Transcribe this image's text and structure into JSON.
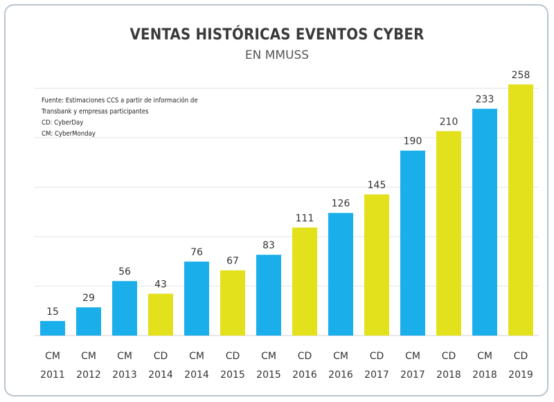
{
  "chart_data": {
    "type": "bar",
    "title": "VENTAS HISTÓRICAS EVENTOS CYBER",
    "subtitle": "EN MMUSS",
    "notes": [
      "Fuente: Estimaciones CCS a partir de información de",
      "Transbank y empresas participantes",
      "CD: CyberDay",
      "CM: CyberMonday"
    ],
    "categories": [
      [
        "CM",
        "2011"
      ],
      [
        "CM",
        "2012"
      ],
      [
        "CM",
        "2013"
      ],
      [
        "CD",
        "2014"
      ],
      [
        "CM",
        "2014"
      ],
      [
        "CD",
        "2015"
      ],
      [
        "CM",
        "2015"
      ],
      [
        "CD",
        "2016"
      ],
      [
        "CM",
        "2016"
      ],
      [
        "CD",
        "2017"
      ],
      [
        "CM",
        "2017"
      ],
      [
        "CD",
        "2018"
      ],
      [
        "CM",
        "2018"
      ],
      [
        "CD",
        "2019"
      ]
    ],
    "values": [
      15,
      29,
      56,
      43,
      76,
      67,
      83,
      111,
      126,
      145,
      190,
      210,
      233,
      258
    ],
    "ylim": [
      0,
      260
    ],
    "grid": true,
    "colors": {
      "CM": "#1aaeea",
      "CD": "#e3e01c",
      "grid": "#e3e3e3",
      "axis": "#cfcfcf"
    }
  }
}
